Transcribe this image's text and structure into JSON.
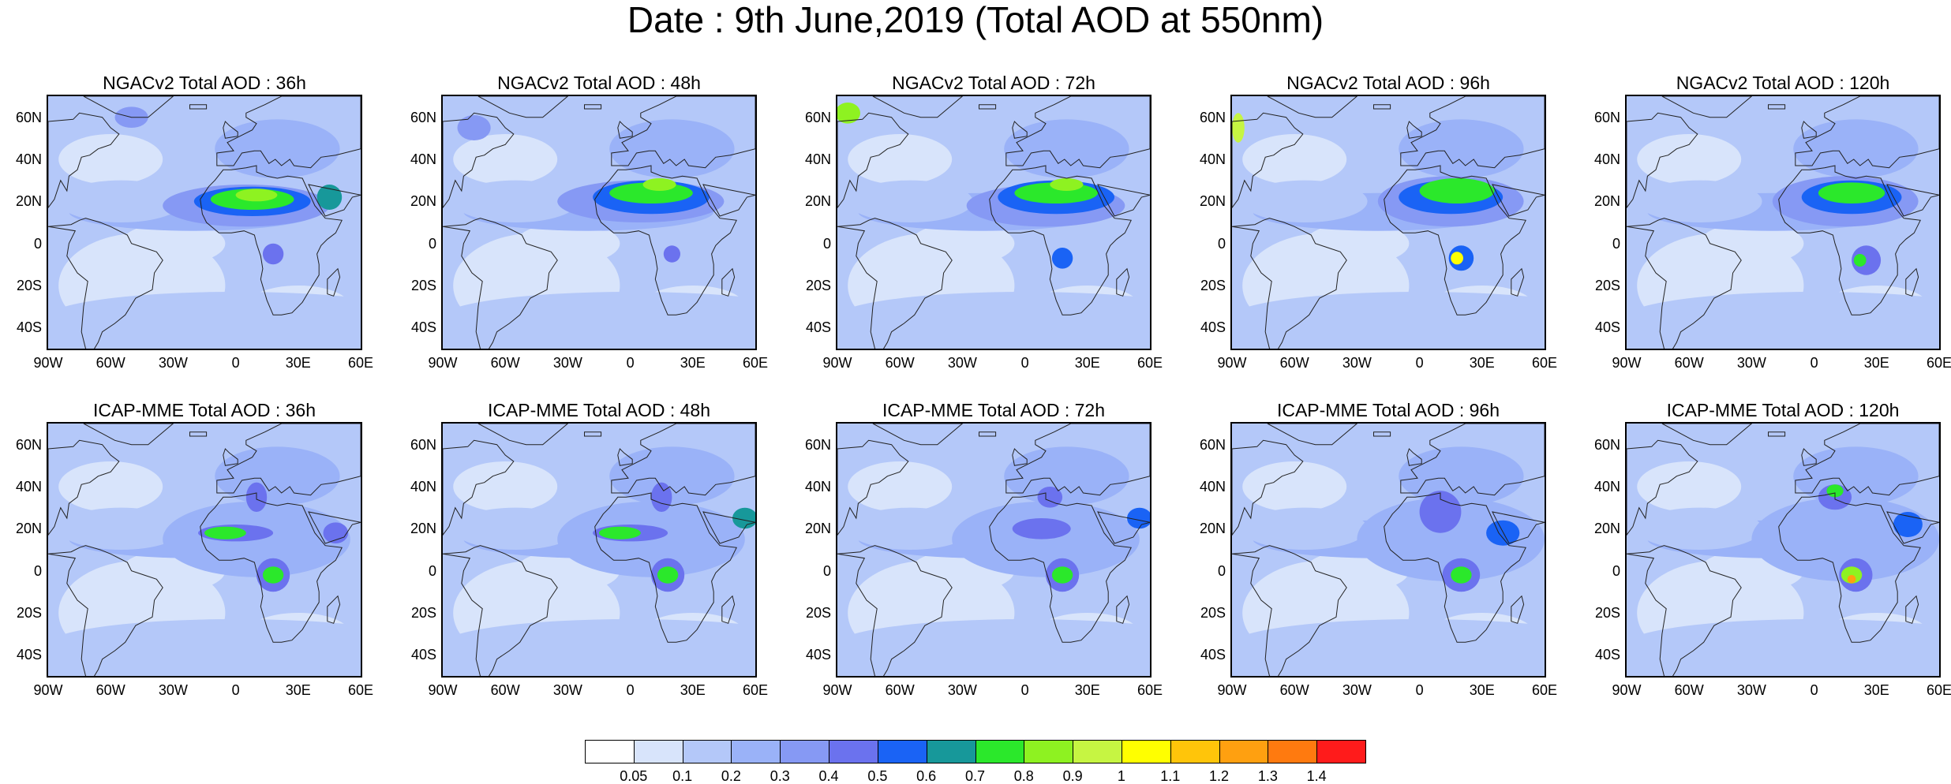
{
  "title": "Date : 9th June,2019 (Total AOD at 550nm)",
  "lat_ticks": [
    "60N",
    "40N",
    "20N",
    "0",
    "20S",
    "40S"
  ],
  "lon_ticks": [
    "90W",
    "60W",
    "30W",
    "0",
    "30E",
    "60E"
  ],
  "panels": [
    {
      "title": "NGACv2 Total AOD : 36h",
      "model": "NGACv2",
      "lead": "36h"
    },
    {
      "title": "NGACv2 Total AOD : 48h",
      "model": "NGACv2",
      "lead": "48h"
    },
    {
      "title": "NGACv2 Total AOD : 72h",
      "model": "NGACv2",
      "lead": "72h"
    },
    {
      "title": "NGACv2 Total AOD : 96h",
      "model": "NGACv2",
      "lead": "96h"
    },
    {
      "title": "NGACv2 Total AOD : 120h",
      "model": "NGACv2",
      "lead": "120h"
    },
    {
      "title": "ICAP-MME Total AOD : 36h",
      "model": "ICAP-MME",
      "lead": "36h"
    },
    {
      "title": "ICAP-MME Total AOD : 48h",
      "model": "ICAP-MME",
      "lead": "48h"
    },
    {
      "title": "ICAP-MME Total AOD : 72h",
      "model": "ICAP-MME",
      "lead": "72h"
    },
    {
      "title": "ICAP-MME Total AOD : 96h",
      "model": "ICAP-MME",
      "lead": "96h"
    },
    {
      "title": "ICAP-MME Total AOD : 120h",
      "model": "ICAP-MME",
      "lead": "120h"
    }
  ],
  "colorbar": {
    "labels": [
      "0.05",
      "0.1",
      "0.2",
      "0.3",
      "0.4",
      "0.5",
      "0.6",
      "0.7",
      "0.8",
      "0.9",
      "1",
      "1.1",
      "1.2",
      "1.3",
      "1.4"
    ],
    "colors": [
      "#ffffff",
      "#d8e4fb",
      "#b4c8f9",
      "#9ab2f8",
      "#8699f4",
      "#6b72ee",
      "#1a63f5",
      "#17989a",
      "#2be82b",
      "#8ef221",
      "#c6f542",
      "#ffff00",
      "#ffc50a",
      "#ffa010",
      "#ff7a0f",
      "#ff1b1b"
    ]
  }
}
